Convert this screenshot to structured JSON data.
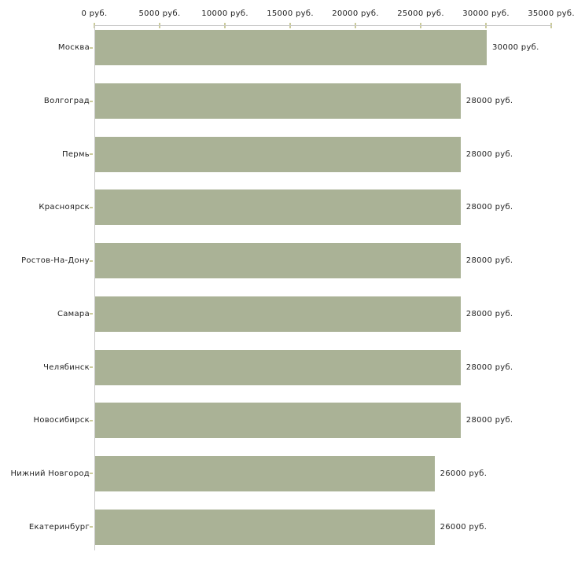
{
  "chart_data": {
    "type": "bar",
    "orientation": "horizontal",
    "title": "",
    "xlabel": "",
    "ylabel": "",
    "categories": [
      "Москва",
      "Волгоград",
      "Пермь",
      "Красноярск",
      "Ростов-На-Дону",
      "Самара",
      "Челябинск",
      "Новосибирск",
      "Нижний Новгород",
      "Екатеринбург"
    ],
    "values": [
      30000,
      28000,
      28000,
      28000,
      28000,
      28000,
      28000,
      28000,
      26000,
      26000
    ],
    "value_labels": [
      "30000 руб.",
      "28000 руб.",
      "28000 руб.",
      "28000 руб.",
      "28000 руб.",
      "28000 руб.",
      "28000 руб.",
      "28000 руб.",
      "26000 руб.",
      "26000 руб."
    ],
    "x_ticks": [
      0,
      5000,
      10000,
      15000,
      20000,
      25000,
      30000,
      35000
    ],
    "x_tick_labels": [
      "0 руб.",
      "5000 руб.",
      "10000 руб.",
      "15000 руб.",
      "20000 руб.",
      "25000 руб.",
      "30000 руб.",
      "35000 руб."
    ],
    "xlim": [
      0,
      35000
    ],
    "grid": false,
    "legend_position": "none",
    "bar_color": "#aab296",
    "axis_color": "#c9c9c9",
    "tick_color": "#cbcb9b",
    "text_color": "#222222",
    "background_color": "#ffffff"
  }
}
